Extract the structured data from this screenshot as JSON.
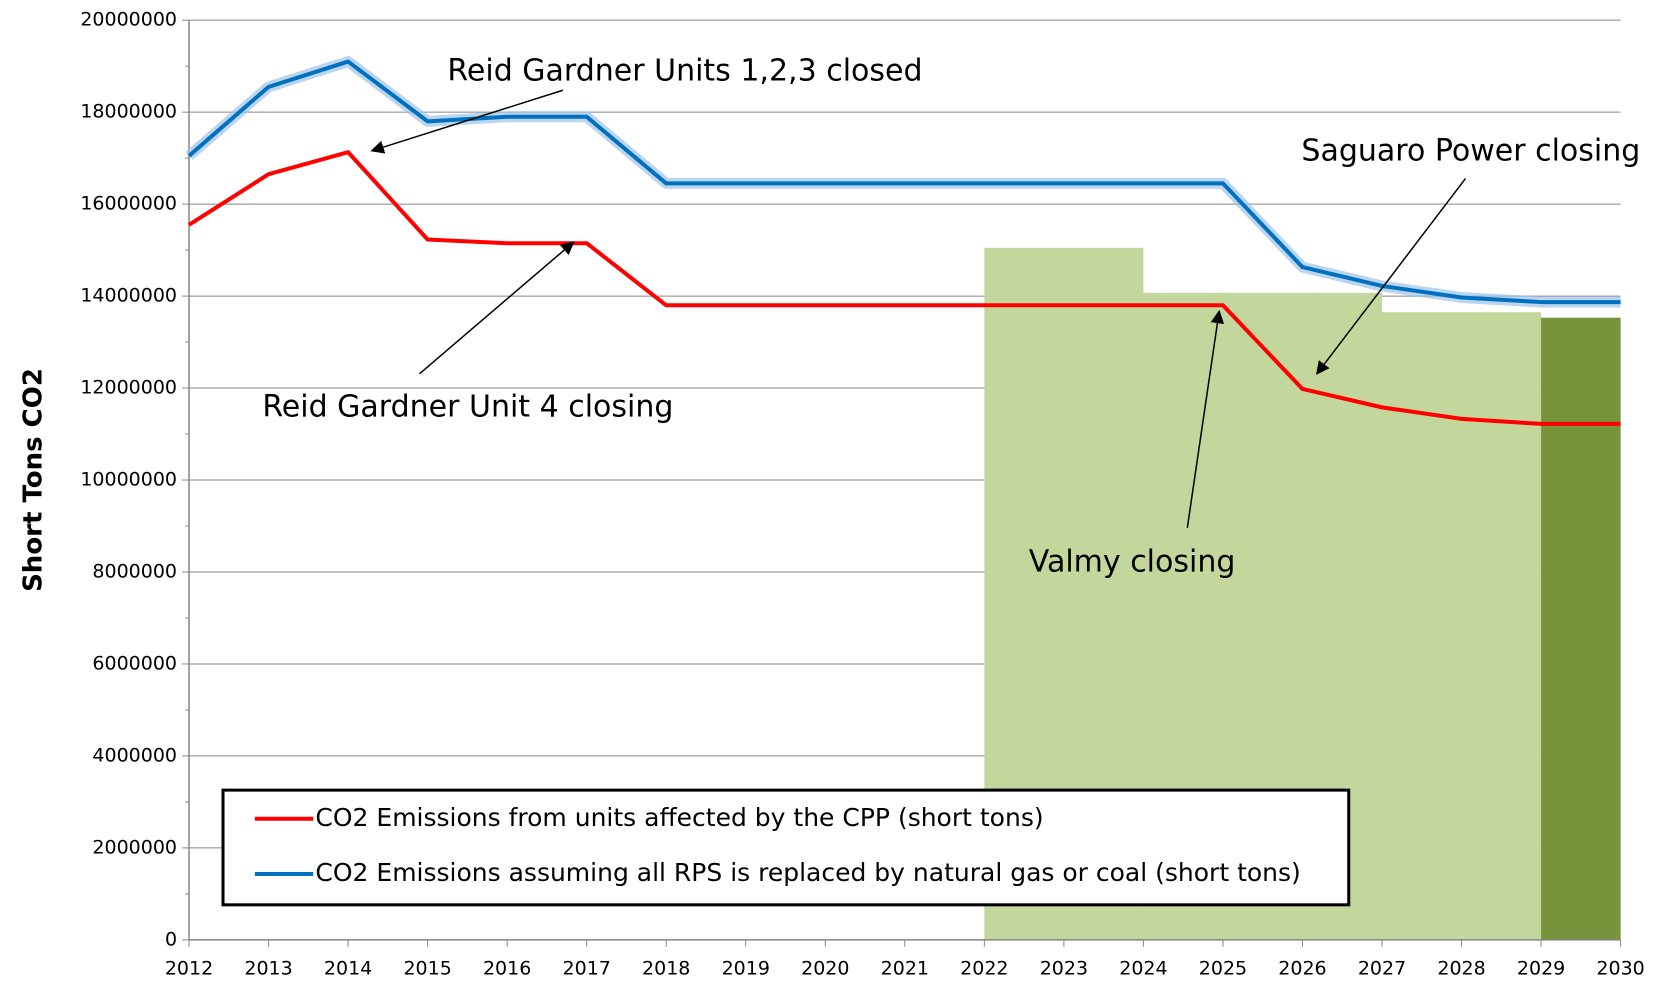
{
  "chart_data": {
    "type": "line",
    "y_label": "Short Tons CO2",
    "x": [
      2012,
      2013,
      2014,
      2015,
      2016,
      2017,
      2018,
      2019,
      2020,
      2021,
      2022,
      2023,
      2024,
      2025,
      2026,
      2027,
      2028,
      2029,
      2030
    ],
    "series": [
      {
        "name": "CO2 Emissions from units affected by the CPP (short tons)",
        "color": "#ff0000",
        "values": [
          15550000,
          16650000,
          17130000,
          15230000,
          15150000,
          15150000,
          13800000,
          13800000,
          13800000,
          13800000,
          13800000,
          13800000,
          13800000,
          13800000,
          11980000,
          11580000,
          11330000,
          11220000,
          11220000
        ]
      },
      {
        "name": "CO2 Emissions assuming all RPS is replaced by natural gas or coal (short tons)",
        "color": "#0070c0",
        "values": [
          17050000,
          18550000,
          19100000,
          17800000,
          17900000,
          17900000,
          16450000,
          16450000,
          16450000,
          16450000,
          16450000,
          16450000,
          16450000,
          16450000,
          14630000,
          14220000,
          13970000,
          13870000,
          13870000
        ]
      }
    ],
    "blocks": [
      {
        "x": [
          2022,
          2024
        ],
        "value": 15050000,
        "color": "#c3d69b"
      },
      {
        "x": [
          2024,
          2027
        ],
        "value": 14070000,
        "color": "#c3d69b"
      },
      {
        "x": [
          2027,
          2029
        ],
        "value": 13650000,
        "color": "#c3d69b"
      },
      {
        "x": [
          2029,
          2030
        ],
        "value": 13530000,
        "color": "#77933c"
      }
    ],
    "annotations": [
      "Reid Gardner Units 1,2,3 closed",
      "Reid Gardner Unit 4 closing",
      "Saguaro Power closing",
      "Valmy closing"
    ],
    "xlim": [
      2012,
      2030
    ],
    "xticks": [
      2012,
      2013,
      2014,
      2015,
      2016,
      2017,
      2018,
      2019,
      2020,
      2021,
      2022,
      2023,
      2024,
      2025,
      2026,
      2027,
      2028,
      2029,
      2030
    ],
    "ylim": [
      0,
      20000000
    ],
    "yticks": [
      0,
      2000000,
      4000000,
      6000000,
      8000000,
      10000000,
      12000000,
      14000000,
      16000000,
      18000000,
      20000000
    ],
    "grid": true
  }
}
